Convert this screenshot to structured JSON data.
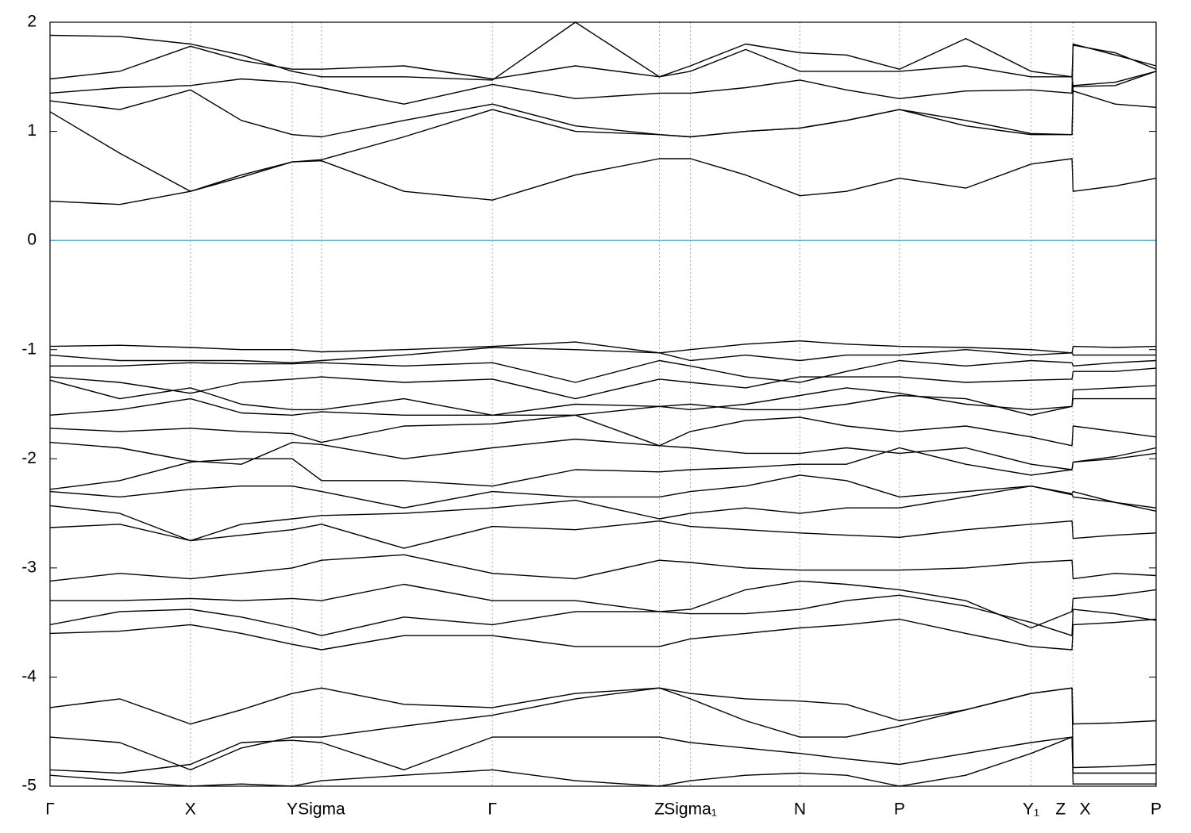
{
  "chart_data": {
    "type": "line",
    "line_color": "#000000",
    "hline": {
      "value": 0,
      "color": "#4fa8c0"
    },
    "xgrid": true,
    "xlim": [
      0,
      1
    ],
    "ylim": [
      -5,
      2
    ],
    "yticks": [
      2,
      1,
      0,
      -1,
      -2,
      -3,
      -4,
      -5
    ],
    "xticks": [
      {
        "value": 0,
        "label": "Γ"
      },
      {
        "value": 0.127,
        "label": "X"
      },
      {
        "value": 0.219,
        "label": "Y"
      },
      {
        "value": 0.2455,
        "label": "Sigma"
      },
      {
        "value": 0.4,
        "label": "Γ"
      },
      {
        "value": 0.551,
        "label": "Z"
      },
      {
        "value": 0.579,
        "label": "Sigma₁"
      },
      {
        "value": 0.678,
        "label": "N"
      },
      {
        "value": 0.768,
        "label": "P"
      },
      {
        "value": 0.887,
        "label": "Y₁"
      },
      {
        "value": 0.925,
        "label": "Z   X"
      },
      {
        "value": 1,
        "label": "P"
      }
    ],
    "x": [
      0,
      0.063,
      0.127,
      0.173,
      0.219,
      0.2455,
      0.32,
      0.4,
      0.475,
      0.551,
      0.579,
      0.629,
      0.678,
      0.72,
      0.768,
      0.828,
      0.887,
      0.924,
      0.925,
      0.963,
      1
    ],
    "series": [
      {
        "values": [
          0.36,
          0.33,
          0.45,
          0.58,
          0.72,
          0.73,
          0.45,
          0.37,
          0.6,
          0.75,
          0.75,
          0.6,
          0.41,
          0.45,
          0.57,
          0.48,
          0.7,
          0.75,
          0.45,
          0.5,
          0.57
        ]
      },
      {
        "values": [
          1.18,
          0.8,
          0.45,
          0.6,
          0.72,
          0.74,
          0.95,
          1.2,
          1.0,
          0.97,
          0.95,
          1.0,
          1.03,
          1.1,
          1.2,
          1.05,
          0.97,
          0.97,
          1.37,
          1.25,
          1.22
        ]
      },
      {
        "values": [
          1.28,
          1.2,
          1.38,
          1.1,
          0.97,
          0.95,
          1.1,
          1.25,
          1.05,
          0.97,
          0.95,
          1.0,
          1.03,
          1.1,
          1.2,
          1.1,
          0.98,
          0.97,
          1.42,
          1.45,
          1.55
        ]
      },
      {
        "values": [
          1.35,
          1.4,
          1.42,
          1.48,
          1.45,
          1.4,
          1.25,
          1.43,
          1.3,
          1.35,
          1.35,
          1.4,
          1.47,
          1.38,
          1.3,
          1.37,
          1.38,
          1.35,
          1.8,
          1.7,
          1.6
        ]
      },
      {
        "values": [
          1.48,
          1.55,
          1.78,
          1.65,
          1.57,
          1.57,
          1.6,
          1.48,
          1.6,
          1.5,
          1.6,
          1.8,
          1.72,
          1.7,
          1.57,
          1.85,
          1.55,
          1.5,
          1.79,
          1.72,
          1.57
        ]
      },
      {
        "values": [
          1.88,
          1.87,
          1.8,
          1.7,
          1.55,
          1.5,
          1.5,
          1.47,
          2.0,
          1.5,
          1.55,
          1.75,
          1.55,
          1.55,
          1.55,
          1.6,
          1.5,
          1.5,
          1.41,
          1.42,
          1.55
        ]
      },
      {
        "values": [
          -0.97,
          -0.96,
          -0.98,
          -1.0,
          -1.0,
          -1.02,
          -1.0,
          -0.97,
          -0.93,
          -1.03,
          -1.0,
          -0.95,
          -0.92,
          -0.95,
          -0.97,
          -0.98,
          -1.0,
          -1.03,
          -0.97,
          -0.98,
          -0.97
        ]
      },
      {
        "values": [
          -1.05,
          -1.1,
          -1.1,
          -1.1,
          -1.12,
          -1.1,
          -1.05,
          -0.98,
          -1.0,
          -1.03,
          -1.1,
          -1.05,
          -1.1,
          -1.05,
          -1.05,
          -1.0,
          -1.05,
          -1.03,
          -1.05,
          -1.05,
          -1.05
        ]
      },
      {
        "values": [
          -1.15,
          -1.15,
          -1.12,
          -1.13,
          -1.13,
          -1.12,
          -1.15,
          -1.12,
          -1.3,
          -1.1,
          -1.15,
          -1.25,
          -1.3,
          -1.2,
          -1.1,
          -1.15,
          -1.1,
          -1.12,
          -1.15,
          -1.12,
          -1.1
        ]
      },
      {
        "values": [
          -1.25,
          -1.3,
          -1.4,
          -1.3,
          -1.27,
          -1.25,
          -1.3,
          -1.27,
          -1.45,
          -1.27,
          -1.3,
          -1.35,
          -1.25,
          -1.25,
          -1.25,
          -1.3,
          -1.28,
          -1.27,
          -1.2,
          -1.2,
          -1.17
        ]
      },
      {
        "values": [
          -1.28,
          -1.45,
          -1.35,
          -1.5,
          -1.55,
          -1.55,
          -1.45,
          -1.6,
          -1.5,
          -1.52,
          -1.55,
          -1.5,
          -1.42,
          -1.35,
          -1.4,
          -1.5,
          -1.55,
          -1.52,
          -1.37,
          -1.35,
          -1.33
        ]
      },
      {
        "values": [
          -1.6,
          -1.55,
          -1.45,
          -1.58,
          -1.6,
          -1.57,
          -1.6,
          -1.6,
          -1.6,
          -1.52,
          -1.5,
          -1.55,
          -1.55,
          -1.5,
          -1.42,
          -1.45,
          -1.6,
          -1.52,
          -1.45,
          -1.45,
          -1.45
        ]
      },
      {
        "values": [
          -1.72,
          -1.75,
          -1.72,
          -1.75,
          -1.77,
          -1.85,
          -1.7,
          -1.68,
          -1.6,
          -1.88,
          -1.75,
          -1.65,
          -1.62,
          -1.7,
          -1.75,
          -1.7,
          -1.8,
          -1.88,
          -1.7,
          -1.75,
          -1.8
        ]
      },
      {
        "values": [
          -1.85,
          -1.9,
          -2.02,
          -2.05,
          -1.85,
          -1.87,
          -2.0,
          -1.9,
          -1.82,
          -1.88,
          -1.9,
          -1.95,
          -1.95,
          -1.9,
          -1.95,
          -1.9,
          -2.05,
          -2.1,
          -2.03,
          -2.0,
          -1.95
        ]
      },
      {
        "values": [
          -2.28,
          -2.2,
          -2.03,
          -2.0,
          -2.0,
          -2.2,
          -2.2,
          -2.25,
          -2.1,
          -2.12,
          -2.1,
          -2.08,
          -2.05,
          -2.05,
          -1.9,
          -2.05,
          -2.15,
          -2.1,
          -2.03,
          -1.98,
          -1.9
        ]
      },
      {
        "values": [
          -2.3,
          -2.35,
          -2.28,
          -2.25,
          -2.25,
          -2.3,
          -2.45,
          -2.3,
          -2.35,
          -2.35,
          -2.3,
          -2.25,
          -2.15,
          -2.2,
          -2.35,
          -2.3,
          -2.25,
          -2.32,
          -2.3,
          -2.4,
          -2.45
        ]
      },
      {
        "values": [
          -2.43,
          -2.5,
          -2.75,
          -2.6,
          -2.55,
          -2.52,
          -2.5,
          -2.45,
          -2.38,
          -2.55,
          -2.5,
          -2.45,
          -2.5,
          -2.45,
          -2.45,
          -2.35,
          -2.25,
          -2.33,
          -2.35,
          -2.4,
          -2.48
        ]
      },
      {
        "values": [
          -2.63,
          -2.6,
          -2.75,
          -2.7,
          -2.65,
          -2.6,
          -2.82,
          -2.62,
          -2.65,
          -2.57,
          -2.62,
          -2.65,
          -2.68,
          -2.7,
          -2.72,
          -2.65,
          -2.6,
          -2.57,
          -2.73,
          -2.7,
          -2.68
        ]
      },
      {
        "values": [
          -3.12,
          -3.05,
          -3.1,
          -3.05,
          -3.0,
          -2.93,
          -2.88,
          -3.05,
          -3.1,
          -2.93,
          -2.95,
          -3.0,
          -3.02,
          -3.02,
          -3.02,
          -3.0,
          -2.95,
          -2.93,
          -3.1,
          -3.05,
          -3.07
        ]
      },
      {
        "values": [
          -3.3,
          -3.3,
          -3.28,
          -3.3,
          -3.28,
          -3.3,
          -3.15,
          -3.3,
          -3.3,
          -3.4,
          -3.38,
          -3.2,
          -3.12,
          -3.15,
          -3.2,
          -3.3,
          -3.55,
          -3.4,
          -3.28,
          -3.25,
          -3.2
        ]
      },
      {
        "values": [
          -3.52,
          -3.4,
          -3.38,
          -3.45,
          -3.55,
          -3.62,
          -3.45,
          -3.52,
          -3.4,
          -3.4,
          -3.42,
          -3.42,
          -3.38,
          -3.3,
          -3.25,
          -3.35,
          -3.5,
          -3.62,
          -3.38,
          -3.42,
          -3.48
        ]
      },
      {
        "values": [
          -3.6,
          -3.58,
          -3.52,
          -3.6,
          -3.7,
          -3.75,
          -3.62,
          -3.62,
          -3.72,
          -3.72,
          -3.65,
          -3.6,
          -3.55,
          -3.52,
          -3.47,
          -3.6,
          -3.72,
          -3.75,
          -3.52,
          -3.5,
          -3.47
        ]
      },
      {
        "values": [
          -4.28,
          -4.2,
          -4.43,
          -4.3,
          -4.15,
          -4.1,
          -4.25,
          -4.28,
          -4.15,
          -4.1,
          -4.15,
          -4.2,
          -4.22,
          -4.25,
          -4.4,
          -4.3,
          -4.15,
          -4.1,
          -4.43,
          -4.42,
          -4.4
        ]
      },
      {
        "values": [
          -4.55,
          -4.6,
          -4.85,
          -4.65,
          -4.55,
          -4.55,
          -4.45,
          -4.35,
          -4.2,
          -4.1,
          -4.2,
          -4.4,
          -4.55,
          -4.55,
          -4.45,
          -4.3,
          -4.15,
          -4.1,
          -4.83,
          -4.82,
          -4.8
        ]
      },
      {
        "values": [
          -4.85,
          -4.88,
          -4.8,
          -4.6,
          -4.58,
          -4.6,
          -4.85,
          -4.55,
          -4.55,
          -4.55,
          -4.6,
          -4.65,
          -4.7,
          -4.75,
          -4.8,
          -4.7,
          -4.6,
          -4.55,
          -4.88,
          -4.88,
          -4.88
        ]
      },
      {
        "values": [
          -4.9,
          -4.95,
          -5.0,
          -4.98,
          -5.0,
          -4.95,
          -4.9,
          -4.85,
          -4.95,
          -5.0,
          -4.95,
          -4.9,
          -4.88,
          -4.9,
          -5.0,
          -4.9,
          -4.7,
          -4.55,
          -4.98,
          -4.98,
          -4.98
        ]
      }
    ]
  }
}
